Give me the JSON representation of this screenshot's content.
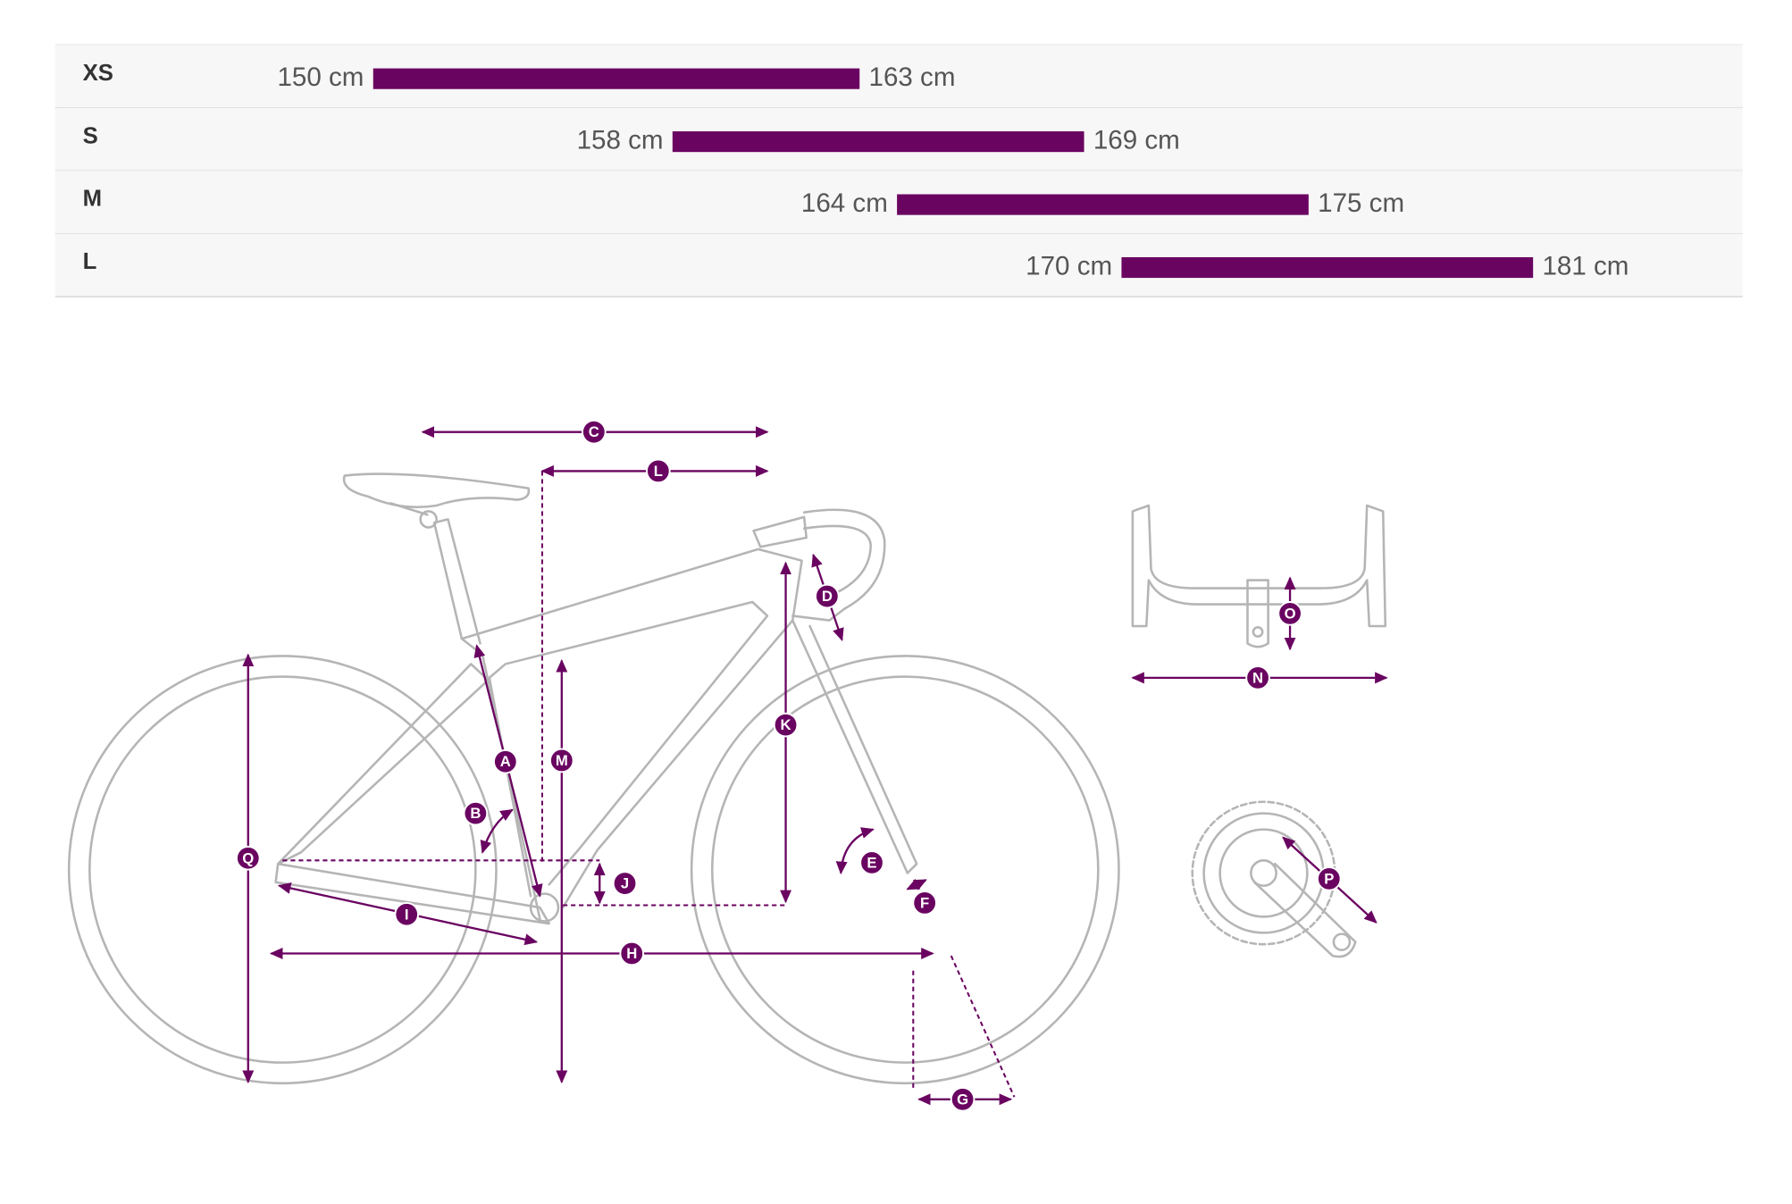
{
  "chart_data": {
    "type": "range-bar",
    "categories": [
      "XS",
      "S",
      "M",
      "L"
    ],
    "values": [
      [
        150,
        163
      ],
      [
        158,
        169
      ],
      [
        164,
        175
      ],
      [
        170,
        181
      ]
    ],
    "value_labels": [
      [
        "150 cm",
        "163 cm"
      ],
      [
        "158 cm",
        "169 cm"
      ],
      [
        "164 cm",
        "175 cm"
      ],
      [
        "170 cm",
        "181 cm"
      ]
    ],
    "color": "#6a0461",
    "xlim": [
      141.5,
      186.6
    ]
  },
  "diagram": {
    "labels": [
      "C",
      "L",
      "D",
      "A",
      "M",
      "K",
      "B",
      "Q",
      "J",
      "E",
      "F",
      "I",
      "H",
      "G",
      "O",
      "N",
      "P"
    ]
  }
}
